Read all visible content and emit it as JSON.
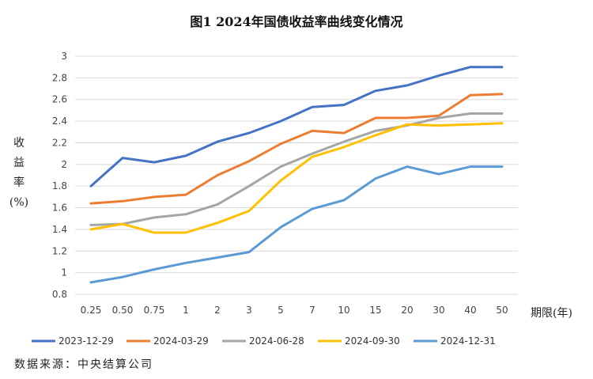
{
  "chart_data": {
    "type": "line",
    "title": "图1 2024年国债收益率曲线变化情况",
    "ylabel": "收益率(%)",
    "xlabel": "期限(年)",
    "categories": [
      "0.25",
      "0.50",
      "0.75",
      "1",
      "2",
      "3",
      "5",
      "7",
      "10",
      "15",
      "20",
      "30",
      "40",
      "50"
    ],
    "ylim": [
      0.8,
      3.0
    ],
    "yticks": [
      "0.8",
      "1",
      "1.2",
      "1.4",
      "1.6",
      "1.8",
      "2",
      "2.2",
      "2.4",
      "2.6",
      "2.8",
      "3"
    ],
    "grid": true,
    "legend_position": "bottom",
    "series": [
      {
        "name": "2023-12-29",
        "color": "#4472C4",
        "values": [
          1.8,
          2.06,
          2.02,
          2.08,
          2.21,
          2.29,
          2.4,
          2.53,
          2.55,
          2.68,
          2.73,
          2.82,
          2.9,
          2.9
        ]
      },
      {
        "name": "2024-03-29",
        "color": "#ED7D31",
        "values": [
          1.64,
          1.66,
          1.7,
          1.72,
          1.9,
          2.03,
          2.19,
          2.31,
          2.29,
          2.43,
          2.43,
          2.45,
          2.64,
          2.65
        ]
      },
      {
        "name": "2024-06-28",
        "color": "#A5A5A5",
        "values": [
          1.44,
          1.45,
          1.51,
          1.54,
          1.63,
          1.8,
          1.98,
          2.1,
          2.21,
          2.31,
          2.36,
          2.43,
          2.47,
          2.47
        ]
      },
      {
        "name": "2024-09-30",
        "color": "#FFC000",
        "values": [
          1.4,
          1.45,
          1.37,
          1.37,
          1.46,
          1.57,
          1.85,
          2.07,
          2.16,
          2.27,
          2.37,
          2.36,
          2.37,
          2.38
        ]
      },
      {
        "name": "2024-12-31",
        "color": "#5B9BD5",
        "values": [
          0.91,
          0.96,
          1.03,
          1.09,
          1.14,
          1.19,
          1.42,
          1.59,
          1.67,
          1.87,
          1.98,
          1.91,
          1.98,
          1.98
        ]
      }
    ]
  },
  "footer": {
    "source": "数据来源：中央结算公司"
  }
}
